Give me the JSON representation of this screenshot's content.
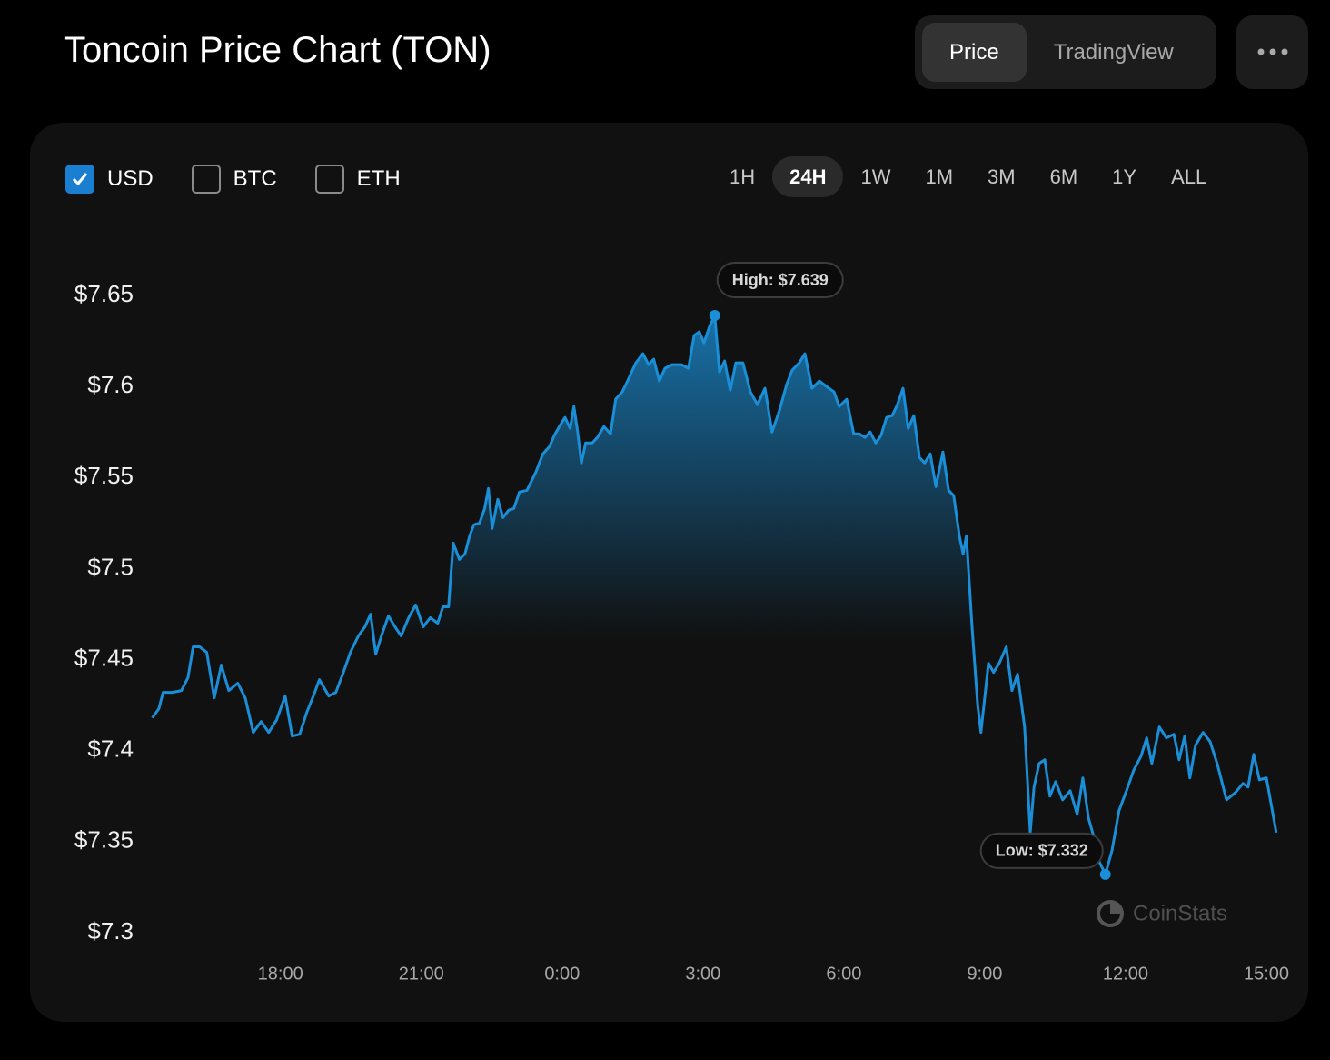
{
  "header": {
    "title": "Toncoin Price Chart (TON)",
    "tabs": [
      {
        "label": "Price",
        "selected": true
      },
      {
        "label": "TradingView",
        "selected": false
      }
    ]
  },
  "currencies": [
    {
      "label": "USD",
      "checked": true
    },
    {
      "label": "BTC",
      "checked": false
    },
    {
      "label": "ETH",
      "checked": false
    }
  ],
  "ranges": [
    {
      "label": "1H",
      "selected": false
    },
    {
      "label": "24H",
      "selected": true
    },
    {
      "label": "1W",
      "selected": false
    },
    {
      "label": "1M",
      "selected": false
    },
    {
      "label": "3M",
      "selected": false
    },
    {
      "label": "6M",
      "selected": false
    },
    {
      "label": "1Y",
      "selected": false
    },
    {
      "label": "ALL",
      "selected": false
    }
  ],
  "chart_data": {
    "type": "area",
    "color": "#1a8fd8",
    "x": [
      15.27,
      15.41,
      15.5,
      15.7,
      15.89,
      16.03,
      16.14,
      16.28,
      16.43,
      16.59,
      16.74,
      16.9,
      17.09,
      17.25,
      17.42,
      17.59,
      17.75,
      17.92,
      18.1,
      18.25,
      18.41,
      18.56,
      18.7,
      18.83,
      19.03,
      19.18,
      19.34,
      19.49,
      19.66,
      19.8,
      19.92,
      20.03,
      20.15,
      20.3,
      20.44,
      20.57,
      20.73,
      20.88,
      21.04,
      21.19,
      21.35,
      21.46,
      21.58,
      21.68,
      21.81,
      21.93,
      22.03,
      22.12,
      22.24,
      22.35,
      22.43,
      22.51,
      22.63,
      22.74,
      22.86,
      22.97,
      23.09,
      23.25,
      23.44,
      23.59,
      23.73,
      23.83,
      23.94,
      24.06,
      24.17,
      24.25,
      24.33,
      24.41,
      24.5,
      24.64,
      24.75,
      24.89,
      25.03,
      25.14,
      25.28,
      25.41,
      25.57,
      25.72,
      25.84,
      25.95,
      26.07,
      26.19,
      26.34,
      26.54,
      26.69,
      26.81,
      26.92,
      27.02,
      27.14,
      27.25,
      27.35,
      27.46,
      27.58,
      27.7,
      27.85,
      28.01,
      28.16,
      28.32,
      28.47,
      28.63,
      28.78,
      28.9,
      29.05,
      29.17,
      29.32,
      29.48,
      29.63,
      29.79,
      29.9,
      30.06,
      30.21,
      30.33,
      30.45,
      30.56,
      30.68,
      30.79,
      30.91,
      31.03,
      31.14,
      31.26,
      31.37,
      31.49,
      31.61,
      31.72,
      31.84,
      31.96,
      32.11,
      32.23,
      32.34,
      32.46,
      32.54,
      32.61,
      32.73,
      32.85,
      32.92,
      33.08,
      33.19,
      33.31,
      33.46,
      33.58,
      33.7,
      33.85,
      33.97,
      34.05,
      34.16,
      34.28,
      34.39,
      34.51,
      34.66,
      34.82,
      34.97,
      35.09,
      35.21,
      35.32,
      35.44,
      35.57,
      35.71,
      35.86,
      36.02,
      36.17,
      36.33,
      36.45,
      36.56,
      36.72,
      36.87,
      37.03,
      37.14,
      37.26,
      37.37,
      37.49,
      37.65,
      37.8,
      37.95,
      38.15,
      38.34,
      38.5,
      38.61,
      38.73,
      38.85,
      39.0,
      39.21
    ],
    "values": [
      7.418,
      7.423,
      7.432,
      7.432,
      7.433,
      7.44,
      7.457,
      7.457,
      7.454,
      7.429,
      7.447,
      7.433,
      7.437,
      7.429,
      7.41,
      7.416,
      7.41,
      7.417,
      7.43,
      7.408,
      7.409,
      7.421,
      7.43,
      7.439,
      7.43,
      7.432,
      7.443,
      7.454,
      7.463,
      7.468,
      7.475,
      7.453,
      7.463,
      7.474,
      7.468,
      7.463,
      7.473,
      7.48,
      7.468,
      7.473,
      7.47,
      7.479,
      7.479,
      7.514,
      7.505,
      7.508,
      7.518,
      7.524,
      7.525,
      7.533,
      7.544,
      7.522,
      7.538,
      7.528,
      7.532,
      7.533,
      7.542,
      7.543,
      7.553,
      7.563,
      7.567,
      7.573,
      7.578,
      7.583,
      7.577,
      7.589,
      7.575,
      7.558,
      7.569,
      7.569,
      7.572,
      7.578,
      7.574,
      7.593,
      7.597,
      7.604,
      7.613,
      7.618,
      7.612,
      7.615,
      7.603,
      7.61,
      7.612,
      7.612,
      7.61,
      7.628,
      7.63,
      7.624,
      7.633,
      7.639,
      7.608,
      7.614,
      7.598,
      7.613,
      7.613,
      7.597,
      7.59,
      7.599,
      7.575,
      7.587,
      7.601,
      7.609,
      7.613,
      7.618,
      7.599,
      7.603,
      7.6,
      7.597,
      7.589,
      7.593,
      7.574,
      7.574,
      7.572,
      7.575,
      7.569,
      7.573,
      7.583,
      7.584,
      7.59,
      7.599,
      7.577,
      7.584,
      7.561,
      7.558,
      7.563,
      7.545,
      7.564,
      7.543,
      7.54,
      7.518,
      7.508,
      7.518,
      7.468,
      7.425,
      7.41,
      7.448,
      7.443,
      7.448,
      7.457,
      7.433,
      7.442,
      7.413,
      7.355,
      7.38,
      7.393,
      7.395,
      7.375,
      7.383,
      7.373,
      7.378,
      7.365,
      7.385,
      7.363,
      7.353,
      7.339,
      7.332,
      7.345,
      7.367,
      7.378,
      7.389,
      7.397,
      7.407,
      7.393,
      7.413,
      7.407,
      7.409,
      7.395,
      7.408,
      7.385,
      7.403,
      7.41,
      7.405,
      7.393,
      7.373,
      7.377,
      7.382,
      7.38,
      7.398,
      7.384,
      7.385,
      7.355
    ],
    "xlim": [
      15.2,
      39.6
    ],
    "xticks": [
      {
        "value": 18,
        "label": "18:00"
      },
      {
        "value": 21,
        "label": "21:00"
      },
      {
        "value": 24,
        "label": "0:00"
      },
      {
        "value": 27,
        "label": "3:00"
      },
      {
        "value": 30,
        "label": "6:00"
      },
      {
        "value": 33,
        "label": "9:00"
      },
      {
        "value": 36,
        "label": "12:00"
      },
      {
        "value": 39,
        "label": "15:00"
      }
    ],
    "ylim": [
      7.3,
      7.65
    ],
    "yticks": [
      {
        "value": 7.65,
        "label": "$7.65"
      },
      {
        "value": 7.6,
        "label": "$7.6"
      },
      {
        "value": 7.55,
        "label": "$7.55"
      },
      {
        "value": 7.5,
        "label": "$7.5"
      },
      {
        "value": 7.45,
        "label": "$7.45"
      },
      {
        "value": 7.4,
        "label": "$7.4"
      },
      {
        "value": 7.35,
        "label": "$7.35"
      },
      {
        "value": 7.3,
        "label": "$7.3"
      }
    ],
    "annotations": [
      {
        "label": "High: $7.639",
        "x": 27.25,
        "value": 7.639,
        "side": "above"
      },
      {
        "label": "Low: $7.332",
        "x": 35.57,
        "value": 7.332,
        "side": "left"
      }
    ],
    "watermark": "CoinStats"
  }
}
